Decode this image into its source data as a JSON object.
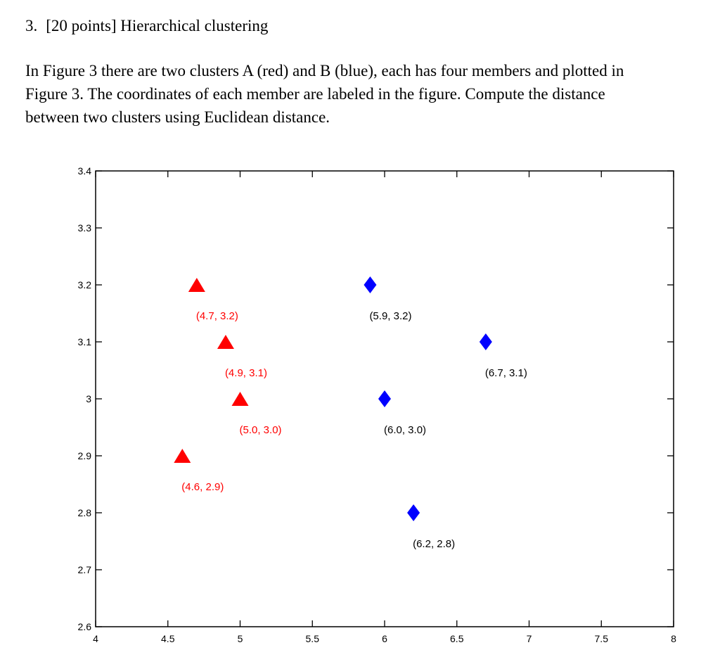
{
  "question": {
    "number": "3.",
    "title": "[20 points] Hierarchical clustering",
    "prompt_lines": [
      "In Figure 3 there are two clusters A (red) and B (blue), each has four members and plotted in",
      "Figure 3. The coordinates of each member are labeled in the figure. Compute the distance",
      "between two clusters using Euclidean distance."
    ]
  },
  "chart_data": {
    "type": "scatter",
    "title": "",
    "xlabel": "",
    "ylabel": "",
    "xlim": [
      4,
      8
    ],
    "ylim": [
      2.6,
      3.4
    ],
    "x_ticks": [
      "4",
      "4.5",
      "5",
      "5.5",
      "6",
      "6.5",
      "7",
      "7.5",
      "8"
    ],
    "y_ticks": [
      "2.6",
      "2.7",
      "2.8",
      "2.9",
      "3",
      "3.1",
      "3.2",
      "3.3",
      "3.4"
    ],
    "grid": false,
    "series": [
      {
        "marker": "triangle",
        "color": "#ff0000",
        "points": [
          {
            "x": 4.7,
            "y": 3.2,
            "label": "(4.7, 3.2)"
          },
          {
            "x": 4.9,
            "y": 3.1,
            "label": "(4.9, 3.1)"
          },
          {
            "x": 5.0,
            "y": 3.0,
            "label": "(5.0, 3.0)"
          },
          {
            "x": 4.6,
            "y": 2.9,
            "label": "(4.6, 2.9)"
          }
        ]
      },
      {
        "marker": "diamond",
        "color": "#0000ff",
        "points": [
          {
            "x": 5.9,
            "y": 3.2,
            "label": "(5.9, 3.2)"
          },
          {
            "x": 6.7,
            "y": 3.1,
            "label": "(6.7, 3.1)"
          },
          {
            "x": 6.0,
            "y": 3.0,
            "label": "(6.0, 3.0)"
          },
          {
            "x": 6.2,
            "y": 2.8,
            "label": "(6.2, 2.8)"
          }
        ]
      }
    ]
  }
}
